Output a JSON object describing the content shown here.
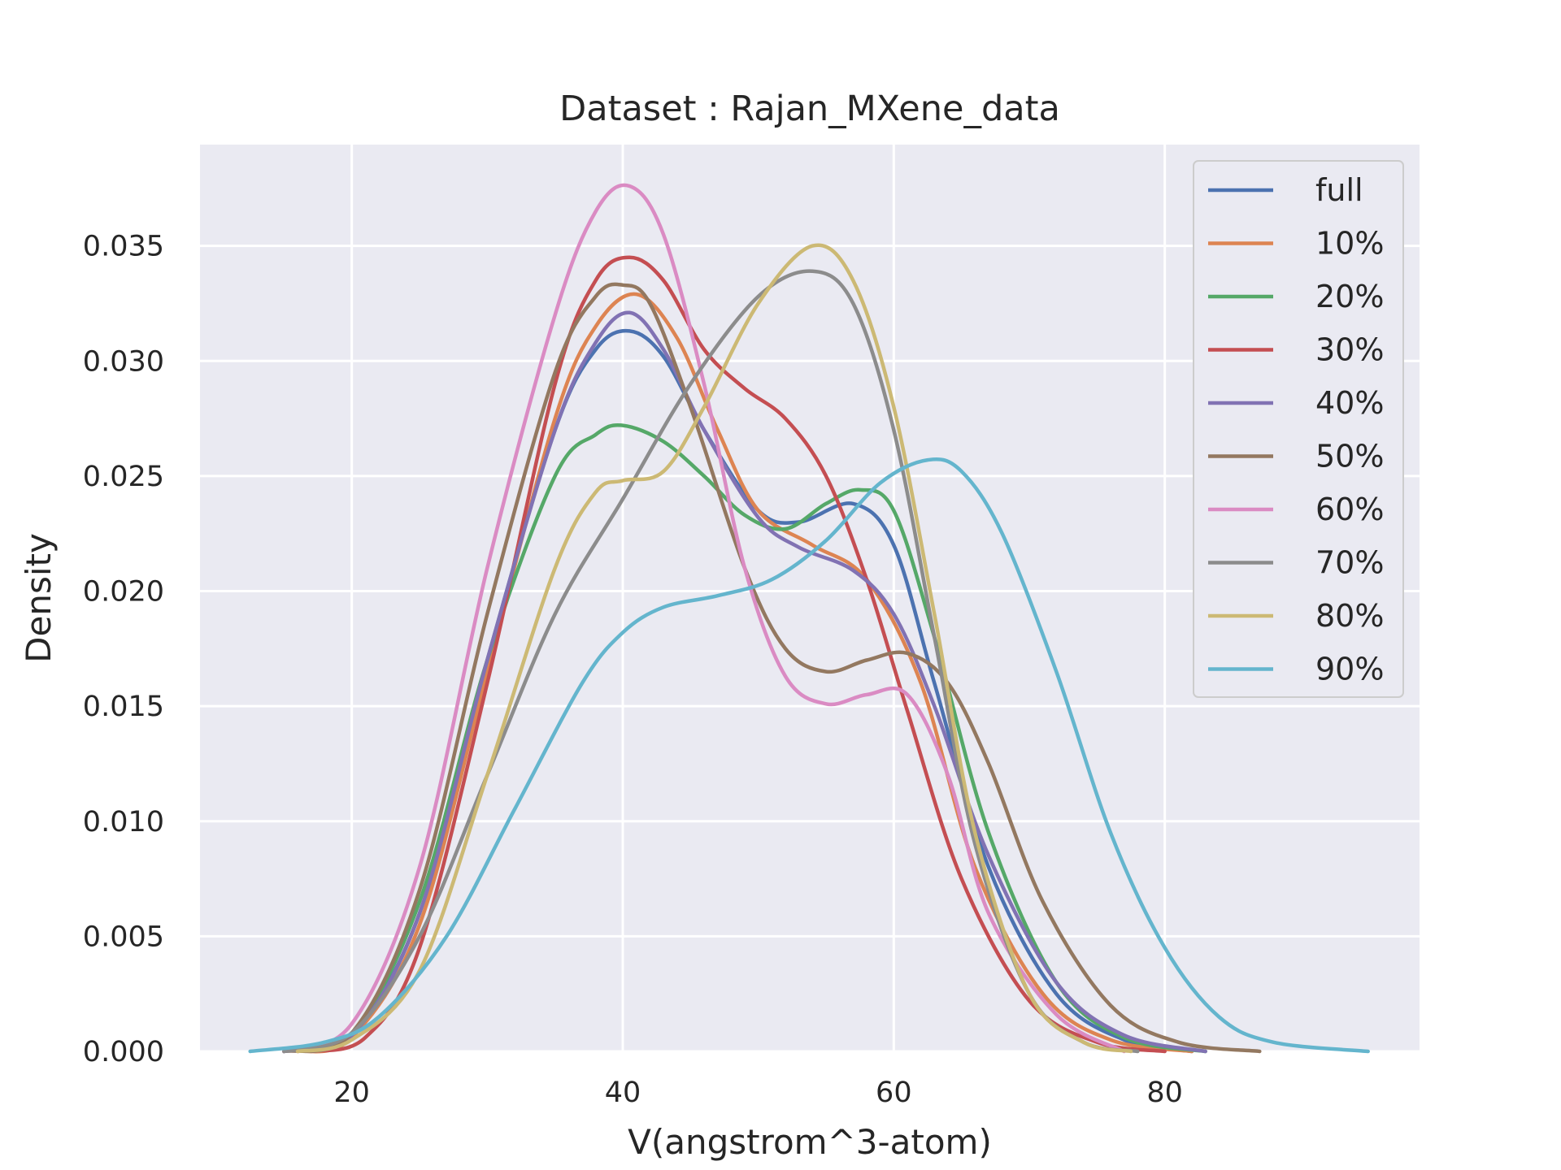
{
  "chart_data": {
    "type": "line",
    "title": "Dataset : Rajan_MXene_data",
    "xlabel": "V(angstrom^3-atom)",
    "ylabel": "Density",
    "xlim": [
      8.8,
      98.8
    ],
    "ylim": [
      0,
      0.0394
    ],
    "xticks": [
      20,
      40,
      60,
      80
    ],
    "yticks": [
      0.0,
      0.005,
      0.01,
      0.015,
      0.02,
      0.025,
      0.03,
      0.035
    ],
    "ytick_labels": [
      "0.000",
      "0.005",
      "0.010",
      "0.015",
      "0.020",
      "0.025",
      "0.030",
      "0.035"
    ],
    "grid": true,
    "legend_position": "top-right",
    "series": [
      {
        "name": "full",
        "color": "#4c72b0",
        "points": [
          [
            15,
            0
          ],
          [
            20,
            0.0008
          ],
          [
            25,
            0.006
          ],
          [
            30,
            0.017
          ],
          [
            35,
            0.027
          ],
          [
            38,
            0.0305
          ],
          [
            40.5,
            0.0313
          ],
          [
            43,
            0.0302
          ],
          [
            46,
            0.027
          ],
          [
            50,
            0.0235
          ],
          [
            53,
            0.023
          ],
          [
            57,
            0.0238
          ],
          [
            60,
            0.022
          ],
          [
            63,
            0.016
          ],
          [
            67,
            0.008
          ],
          [
            72,
            0.0025
          ],
          [
            77,
            0.0005
          ],
          [
            82,
            0
          ]
        ]
      },
      {
        "name": "10%",
        "color": "#dd8452",
        "points": [
          [
            16,
            0
          ],
          [
            20,
            0.0006
          ],
          [
            25,
            0.0055
          ],
          [
            30,
            0.0165
          ],
          [
            35,
            0.0275
          ],
          [
            38,
            0.0315
          ],
          [
            41,
            0.0329
          ],
          [
            44,
            0.031
          ],
          [
            47,
            0.027
          ],
          [
            50,
            0.0235
          ],
          [
            54,
            0.022
          ],
          [
            58,
            0.0205
          ],
          [
            62,
            0.016
          ],
          [
            66,
            0.008
          ],
          [
            71,
            0.0025
          ],
          [
            76,
            0.0005
          ],
          [
            82,
            0
          ]
        ]
      },
      {
        "name": "20%",
        "color": "#55a868",
        "points": [
          [
            15,
            0
          ],
          [
            20,
            0.0008
          ],
          [
            25,
            0.0065
          ],
          [
            30,
            0.017
          ],
          [
            35,
            0.025
          ],
          [
            38,
            0.0268
          ],
          [
            40,
            0.0272
          ],
          [
            43,
            0.0265
          ],
          [
            46,
            0.025
          ],
          [
            49,
            0.0233
          ],
          [
            52,
            0.0227
          ],
          [
            55,
            0.0238
          ],
          [
            57.5,
            0.0244
          ],
          [
            60,
            0.0235
          ],
          [
            63,
            0.018
          ],
          [
            67,
            0.0095
          ],
          [
            72,
            0.003
          ],
          [
            77,
            0.0006
          ],
          [
            83,
            0
          ]
        ]
      },
      {
        "name": "30%",
        "color": "#c44e52",
        "points": [
          [
            17,
            0
          ],
          [
            21,
            0.0006
          ],
          [
            25,
            0.0045
          ],
          [
            30,
            0.016
          ],
          [
            35,
            0.029
          ],
          [
            38,
            0.0335
          ],
          [
            40.5,
            0.0345
          ],
          [
            43,
            0.0335
          ],
          [
            46,
            0.0305
          ],
          [
            49,
            0.0288
          ],
          [
            52,
            0.0275
          ],
          [
            55,
            0.025
          ],
          [
            58,
            0.0205
          ],
          [
            61,
            0.0148
          ],
          [
            65,
            0.0075
          ],
          [
            70,
            0.0022
          ],
          [
            75,
            0.0004
          ],
          [
            80,
            0
          ]
        ]
      },
      {
        "name": "40%",
        "color": "#8172b3",
        "points": [
          [
            15,
            0
          ],
          [
            20,
            0.0007
          ],
          [
            25,
            0.006
          ],
          [
            30,
            0.017
          ],
          [
            35,
            0.027
          ],
          [
            38,
            0.0308
          ],
          [
            40.5,
            0.0321
          ],
          [
            43,
            0.0305
          ],
          [
            46,
            0.027
          ],
          [
            50,
            0.0232
          ],
          [
            53,
            0.0219
          ],
          [
            57,
            0.0209
          ],
          [
            60,
            0.019
          ],
          [
            63,
            0.015
          ],
          [
            67,
            0.0085
          ],
          [
            72,
            0.003
          ],
          [
            77,
            0.0007
          ],
          [
            83,
            0
          ]
        ]
      },
      {
        "name": "50%",
        "color": "#937860",
        "points": [
          [
            15,
            0
          ],
          [
            20,
            0.0008
          ],
          [
            25,
            0.007
          ],
          [
            30,
            0.019
          ],
          [
            35,
            0.0295
          ],
          [
            38,
            0.0328
          ],
          [
            40,
            0.0333
          ],
          [
            42,
            0.0325
          ],
          [
            45,
            0.028
          ],
          [
            49,
            0.021
          ],
          [
            52,
            0.0175
          ],
          [
            55,
            0.0165
          ],
          [
            58,
            0.017
          ],
          [
            61,
            0.0173
          ],
          [
            64,
            0.016
          ],
          [
            67,
            0.0125
          ],
          [
            71,
            0.0065
          ],
          [
            76,
            0.002
          ],
          [
            81,
            0.0004
          ],
          [
            87,
            0
          ]
        ]
      },
      {
        "name": "60%",
        "color": "#da8bc3",
        "points": [
          [
            15,
            0
          ],
          [
            20,
            0.0012
          ],
          [
            25,
            0.008
          ],
          [
            30,
            0.021
          ],
          [
            35,
            0.032
          ],
          [
            38,
            0.0365
          ],
          [
            40.5,
            0.0376
          ],
          [
            43,
            0.0355
          ],
          [
            46,
            0.029
          ],
          [
            49,
            0.021
          ],
          [
            52,
            0.0163
          ],
          [
            55,
            0.0151
          ],
          [
            58,
            0.0155
          ],
          [
            61,
            0.0155
          ],
          [
            64,
            0.012
          ],
          [
            67,
            0.006
          ],
          [
            72,
            0.0016
          ],
          [
            77,
            0
          ]
        ]
      },
      {
        "name": "70%",
        "color": "#8c8c8c",
        "points": [
          [
            15,
            0
          ],
          [
            20,
            0.0008
          ],
          [
            25,
            0.005
          ],
          [
            30,
            0.012
          ],
          [
            35,
            0.019
          ],
          [
            40,
            0.024
          ],
          [
            45,
            0.029
          ],
          [
            50,
            0.0328
          ],
          [
            54,
            0.0339
          ],
          [
            57,
            0.0325
          ],
          [
            60,
            0.027
          ],
          [
            63,
            0.018
          ],
          [
            66,
            0.009
          ],
          [
            70,
            0.0025
          ],
          [
            74,
            0.0004
          ],
          [
            78,
            0
          ]
        ]
      },
      {
        "name": "80%",
        "color": "#ccb974",
        "points": [
          [
            16,
            0
          ],
          [
            20,
            0.0005
          ],
          [
            25,
            0.0035
          ],
          [
            30,
            0.012
          ],
          [
            35,
            0.021
          ],
          [
            38,
            0.0243
          ],
          [
            40,
            0.0248
          ],
          [
            43,
            0.0252
          ],
          [
            46,
            0.028
          ],
          [
            50,
            0.0325
          ],
          [
            54,
            0.035
          ],
          [
            57,
            0.0335
          ],
          [
            60,
            0.028
          ],
          [
            63,
            0.019
          ],
          [
            66,
            0.0095
          ],
          [
            70,
            0.0025
          ],
          [
            74,
            0.0004
          ],
          [
            77.5,
            0
          ]
        ]
      },
      {
        "name": "90%",
        "color": "#64b5cd",
        "points": [
          [
            12.5,
            0
          ],
          [
            18,
            0.0004
          ],
          [
            22,
            0.0015
          ],
          [
            27,
            0.005
          ],
          [
            32,
            0.0105
          ],
          [
            37,
            0.016
          ],
          [
            40,
            0.0182
          ],
          [
            43,
            0.0193
          ],
          [
            47,
            0.0198
          ],
          [
            51,
            0.0205
          ],
          [
            55,
            0.0222
          ],
          [
            59,
            0.0247
          ],
          [
            62.5,
            0.0257
          ],
          [
            65,
            0.0252
          ],
          [
            68,
            0.0225
          ],
          [
            72,
            0.0165
          ],
          [
            76,
            0.0095
          ],
          [
            80,
            0.0045
          ],
          [
            84,
            0.0015
          ],
          [
            88,
            0.0004
          ],
          [
            95,
            0
          ]
        ]
      }
    ]
  }
}
